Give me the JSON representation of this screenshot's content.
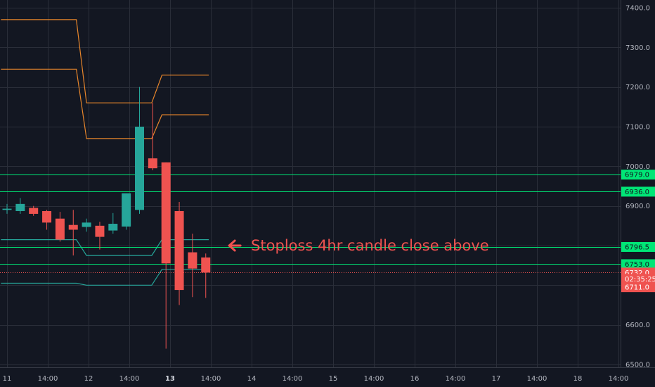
{
  "chart_data": {
    "type": "candlestick",
    "colors": {
      "background": "#131722",
      "grid": "#2a2e39",
      "up": "#26a69a",
      "down": "#ef5350",
      "band_upper": "#e8862b",
      "band_lower": "#26a69a",
      "level_line": "#00e676",
      "price_line": "#ef5350"
    },
    "ylim": [
      6500,
      7420
    ],
    "y_ticks": [
      {
        "value": 7400,
        "label": "7400.0"
      },
      {
        "value": 7300,
        "label": "7300.0"
      },
      {
        "value": 7200,
        "label": "7200.0"
      },
      {
        "value": 7100,
        "label": "7100.0"
      },
      {
        "value": 7000,
        "label": "7000.0"
      },
      {
        "value": 6900,
        "label": "6900.0"
      },
      {
        "value": 6600,
        "label": "6600.0"
      },
      {
        "value": 6500,
        "label": "6500.0"
      }
    ],
    "x_ticks": [
      {
        "t": 0,
        "label": "11",
        "bold": false
      },
      {
        "t": 4,
        "label": "14:00",
        "bold": false
      },
      {
        "t": 8,
        "label": "12",
        "bold": false
      },
      {
        "t": 12,
        "label": "14:00",
        "bold": false
      },
      {
        "t": 16,
        "label": "13",
        "bold": true
      },
      {
        "t": 20,
        "label": "14:00",
        "bold": false
      },
      {
        "t": 24,
        "label": "14",
        "bold": false
      },
      {
        "t": 28,
        "label": "14:00",
        "bold": false
      },
      {
        "t": 32,
        "label": "15",
        "bold": false
      },
      {
        "t": 36,
        "label": "14:00",
        "bold": false
      },
      {
        "t": 40,
        "label": "16",
        "bold": false
      },
      {
        "t": 44,
        "label": "14:00",
        "bold": false
      },
      {
        "t": 48,
        "label": "17",
        "bold": false
      },
      {
        "t": 52,
        "label": "14:00",
        "bold": false
      },
      {
        "t": 56,
        "label": "18",
        "bold": false
      },
      {
        "t": 60,
        "label": "14:00",
        "bold": false
      }
    ],
    "candles": [
      {
        "t": 0.0,
        "o": 6890,
        "h": 6905,
        "l": 6880,
        "c": 6893
      },
      {
        "t": 1.3,
        "o": 6887,
        "h": 6920,
        "l": 6880,
        "c": 6905
      },
      {
        "t": 2.6,
        "o": 6895,
        "h": 6900,
        "l": 6875,
        "c": 6880
      },
      {
        "t": 3.9,
        "o": 6887,
        "h": 6890,
        "l": 6840,
        "c": 6858
      },
      {
        "t": 5.2,
        "o": 6868,
        "h": 6885,
        "l": 6810,
        "c": 6815
      },
      {
        "t": 6.5,
        "o": 6852,
        "h": 6890,
        "l": 6775,
        "c": 6840
      },
      {
        "t": 7.8,
        "o": 6847,
        "h": 6868,
        "l": 6835,
        "c": 6858
      },
      {
        "t": 9.1,
        "o": 6850,
        "h": 6860,
        "l": 6790,
        "c": 6822
      },
      {
        "t": 10.4,
        "o": 6838,
        "h": 6882,
        "l": 6830,
        "c": 6855
      },
      {
        "t": 11.7,
        "o": 6848,
        "h": 6925,
        "l": 6840,
        "c": 6932
      },
      {
        "t": 13.0,
        "o": 6890,
        "h": 7200,
        "l": 6880,
        "c": 7100
      },
      {
        "t": 14.3,
        "o": 7020,
        "h": 7160,
        "l": 6990,
        "c": 6995
      },
      {
        "t": 15.6,
        "o": 7010,
        "h": 7010,
        "l": 6540,
        "c": 6755
      },
      {
        "t": 16.9,
        "o": 6887,
        "h": 6910,
        "l": 6650,
        "c": 6688
      },
      {
        "t": 18.2,
        "o": 6783,
        "h": 6830,
        "l": 6670,
        "c": 6742
      },
      {
        "t": 19.5,
        "o": 6770,
        "h": 6780,
        "l": 6668,
        "c": 6732
      }
    ],
    "band_upper_outer": [
      {
        "t": -0.6,
        "v": 7370
      },
      {
        "t": 6.8,
        "v": 7370
      },
      {
        "t": 7.8,
        "v": 7160
      },
      {
        "t": 14.2,
        "v": 7160
      },
      {
        "t": 15.2,
        "v": 7230
      },
      {
        "t": 19.8,
        "v": 7230
      }
    ],
    "band_upper_inner": [
      {
        "t": -0.6,
        "v": 7245
      },
      {
        "t": 6.8,
        "v": 7245
      },
      {
        "t": 7.8,
        "v": 7070
      },
      {
        "t": 14.2,
        "v": 7070
      },
      {
        "t": 15.2,
        "v": 7130
      },
      {
        "t": 19.8,
        "v": 7130
      }
    ],
    "band_lower_inner": [
      {
        "t": -0.6,
        "v": 6815
      },
      {
        "t": 6.8,
        "v": 6815
      },
      {
        "t": 7.8,
        "v": 6775
      },
      {
        "t": 14.2,
        "v": 6775
      },
      {
        "t": 15.2,
        "v": 6815
      },
      {
        "t": 19.8,
        "v": 6815
      }
    ],
    "band_lower_outer": [
      {
        "t": -0.6,
        "v": 6705
      },
      {
        "t": 6.8,
        "v": 6705
      },
      {
        "t": 7.8,
        "v": 6700
      },
      {
        "t": 14.2,
        "v": 6700
      },
      {
        "t": 15.2,
        "v": 6740
      },
      {
        "t": 19.8,
        "v": 6740
      }
    ],
    "levels": [
      {
        "value": 6979,
        "label": "6979.0"
      },
      {
        "value": 6936,
        "label": "6936.0"
      },
      {
        "value": 6796.5,
        "label": "6796.5"
      },
      {
        "value": 6753,
        "label": "6753.0"
      }
    ],
    "last_price": {
      "value": 6732,
      "label": "6732.0"
    },
    "countdown": {
      "value": 6716,
      "label": "02:35:25"
    },
    "low_tag": {
      "value": 6695,
      "label": "6711.0"
    },
    "annotation": {
      "text": "Stoploss 4hr candle close above",
      "value": 6800,
      "t": 21.8
    }
  }
}
